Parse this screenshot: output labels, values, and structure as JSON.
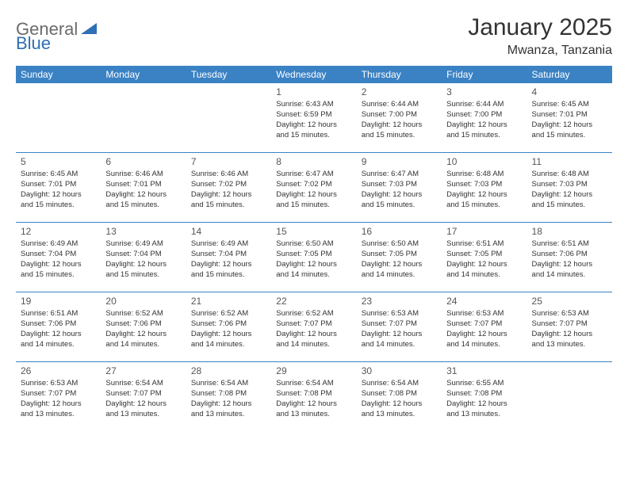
{
  "brand": {
    "text_general": "General",
    "text_blue": "Blue",
    "arrow_color": "#2f6fb3"
  },
  "header": {
    "month_title": "January 2025",
    "location": "Mwanza, Tanzania"
  },
  "style": {
    "header_bg": "#3b82c4",
    "header_text": "#ffffff",
    "cell_border": "#3b82c4",
    "page_bg": "#ffffff"
  },
  "day_headers": [
    "Sunday",
    "Monday",
    "Tuesday",
    "Wednesday",
    "Thursday",
    "Friday",
    "Saturday"
  ],
  "weeks": [
    [
      null,
      null,
      null,
      {
        "n": "1",
        "sunrise": "Sunrise: 6:43 AM",
        "sunset": "Sunset: 6:59 PM",
        "day1": "Daylight: 12 hours",
        "day2": "and 15 minutes."
      },
      {
        "n": "2",
        "sunrise": "Sunrise: 6:44 AM",
        "sunset": "Sunset: 7:00 PM",
        "day1": "Daylight: 12 hours",
        "day2": "and 15 minutes."
      },
      {
        "n": "3",
        "sunrise": "Sunrise: 6:44 AM",
        "sunset": "Sunset: 7:00 PM",
        "day1": "Daylight: 12 hours",
        "day2": "and 15 minutes."
      },
      {
        "n": "4",
        "sunrise": "Sunrise: 6:45 AM",
        "sunset": "Sunset: 7:01 PM",
        "day1": "Daylight: 12 hours",
        "day2": "and 15 minutes."
      }
    ],
    [
      {
        "n": "5",
        "sunrise": "Sunrise: 6:45 AM",
        "sunset": "Sunset: 7:01 PM",
        "day1": "Daylight: 12 hours",
        "day2": "and 15 minutes."
      },
      {
        "n": "6",
        "sunrise": "Sunrise: 6:46 AM",
        "sunset": "Sunset: 7:01 PM",
        "day1": "Daylight: 12 hours",
        "day2": "and 15 minutes."
      },
      {
        "n": "7",
        "sunrise": "Sunrise: 6:46 AM",
        "sunset": "Sunset: 7:02 PM",
        "day1": "Daylight: 12 hours",
        "day2": "and 15 minutes."
      },
      {
        "n": "8",
        "sunrise": "Sunrise: 6:47 AM",
        "sunset": "Sunset: 7:02 PM",
        "day1": "Daylight: 12 hours",
        "day2": "and 15 minutes."
      },
      {
        "n": "9",
        "sunrise": "Sunrise: 6:47 AM",
        "sunset": "Sunset: 7:03 PM",
        "day1": "Daylight: 12 hours",
        "day2": "and 15 minutes."
      },
      {
        "n": "10",
        "sunrise": "Sunrise: 6:48 AM",
        "sunset": "Sunset: 7:03 PM",
        "day1": "Daylight: 12 hours",
        "day2": "and 15 minutes."
      },
      {
        "n": "11",
        "sunrise": "Sunrise: 6:48 AM",
        "sunset": "Sunset: 7:03 PM",
        "day1": "Daylight: 12 hours",
        "day2": "and 15 minutes."
      }
    ],
    [
      {
        "n": "12",
        "sunrise": "Sunrise: 6:49 AM",
        "sunset": "Sunset: 7:04 PM",
        "day1": "Daylight: 12 hours",
        "day2": "and 15 minutes."
      },
      {
        "n": "13",
        "sunrise": "Sunrise: 6:49 AM",
        "sunset": "Sunset: 7:04 PM",
        "day1": "Daylight: 12 hours",
        "day2": "and 15 minutes."
      },
      {
        "n": "14",
        "sunrise": "Sunrise: 6:49 AM",
        "sunset": "Sunset: 7:04 PM",
        "day1": "Daylight: 12 hours",
        "day2": "and 15 minutes."
      },
      {
        "n": "15",
        "sunrise": "Sunrise: 6:50 AM",
        "sunset": "Sunset: 7:05 PM",
        "day1": "Daylight: 12 hours",
        "day2": "and 14 minutes."
      },
      {
        "n": "16",
        "sunrise": "Sunrise: 6:50 AM",
        "sunset": "Sunset: 7:05 PM",
        "day1": "Daylight: 12 hours",
        "day2": "and 14 minutes."
      },
      {
        "n": "17",
        "sunrise": "Sunrise: 6:51 AM",
        "sunset": "Sunset: 7:05 PM",
        "day1": "Daylight: 12 hours",
        "day2": "and 14 minutes."
      },
      {
        "n": "18",
        "sunrise": "Sunrise: 6:51 AM",
        "sunset": "Sunset: 7:06 PM",
        "day1": "Daylight: 12 hours",
        "day2": "and 14 minutes."
      }
    ],
    [
      {
        "n": "19",
        "sunrise": "Sunrise: 6:51 AM",
        "sunset": "Sunset: 7:06 PM",
        "day1": "Daylight: 12 hours",
        "day2": "and 14 minutes."
      },
      {
        "n": "20",
        "sunrise": "Sunrise: 6:52 AM",
        "sunset": "Sunset: 7:06 PM",
        "day1": "Daylight: 12 hours",
        "day2": "and 14 minutes."
      },
      {
        "n": "21",
        "sunrise": "Sunrise: 6:52 AM",
        "sunset": "Sunset: 7:06 PM",
        "day1": "Daylight: 12 hours",
        "day2": "and 14 minutes."
      },
      {
        "n": "22",
        "sunrise": "Sunrise: 6:52 AM",
        "sunset": "Sunset: 7:07 PM",
        "day1": "Daylight: 12 hours",
        "day2": "and 14 minutes."
      },
      {
        "n": "23",
        "sunrise": "Sunrise: 6:53 AM",
        "sunset": "Sunset: 7:07 PM",
        "day1": "Daylight: 12 hours",
        "day2": "and 14 minutes."
      },
      {
        "n": "24",
        "sunrise": "Sunrise: 6:53 AM",
        "sunset": "Sunset: 7:07 PM",
        "day1": "Daylight: 12 hours",
        "day2": "and 14 minutes."
      },
      {
        "n": "25",
        "sunrise": "Sunrise: 6:53 AM",
        "sunset": "Sunset: 7:07 PM",
        "day1": "Daylight: 12 hours",
        "day2": "and 13 minutes."
      }
    ],
    [
      {
        "n": "26",
        "sunrise": "Sunrise: 6:53 AM",
        "sunset": "Sunset: 7:07 PM",
        "day1": "Daylight: 12 hours",
        "day2": "and 13 minutes."
      },
      {
        "n": "27",
        "sunrise": "Sunrise: 6:54 AM",
        "sunset": "Sunset: 7:07 PM",
        "day1": "Daylight: 12 hours",
        "day2": "and 13 minutes."
      },
      {
        "n": "28",
        "sunrise": "Sunrise: 6:54 AM",
        "sunset": "Sunset: 7:08 PM",
        "day1": "Daylight: 12 hours",
        "day2": "and 13 minutes."
      },
      {
        "n": "29",
        "sunrise": "Sunrise: 6:54 AM",
        "sunset": "Sunset: 7:08 PM",
        "day1": "Daylight: 12 hours",
        "day2": "and 13 minutes."
      },
      {
        "n": "30",
        "sunrise": "Sunrise: 6:54 AM",
        "sunset": "Sunset: 7:08 PM",
        "day1": "Daylight: 12 hours",
        "day2": "and 13 minutes."
      },
      {
        "n": "31",
        "sunrise": "Sunrise: 6:55 AM",
        "sunset": "Sunset: 7:08 PM",
        "day1": "Daylight: 12 hours",
        "day2": "and 13 minutes."
      },
      null
    ]
  ]
}
